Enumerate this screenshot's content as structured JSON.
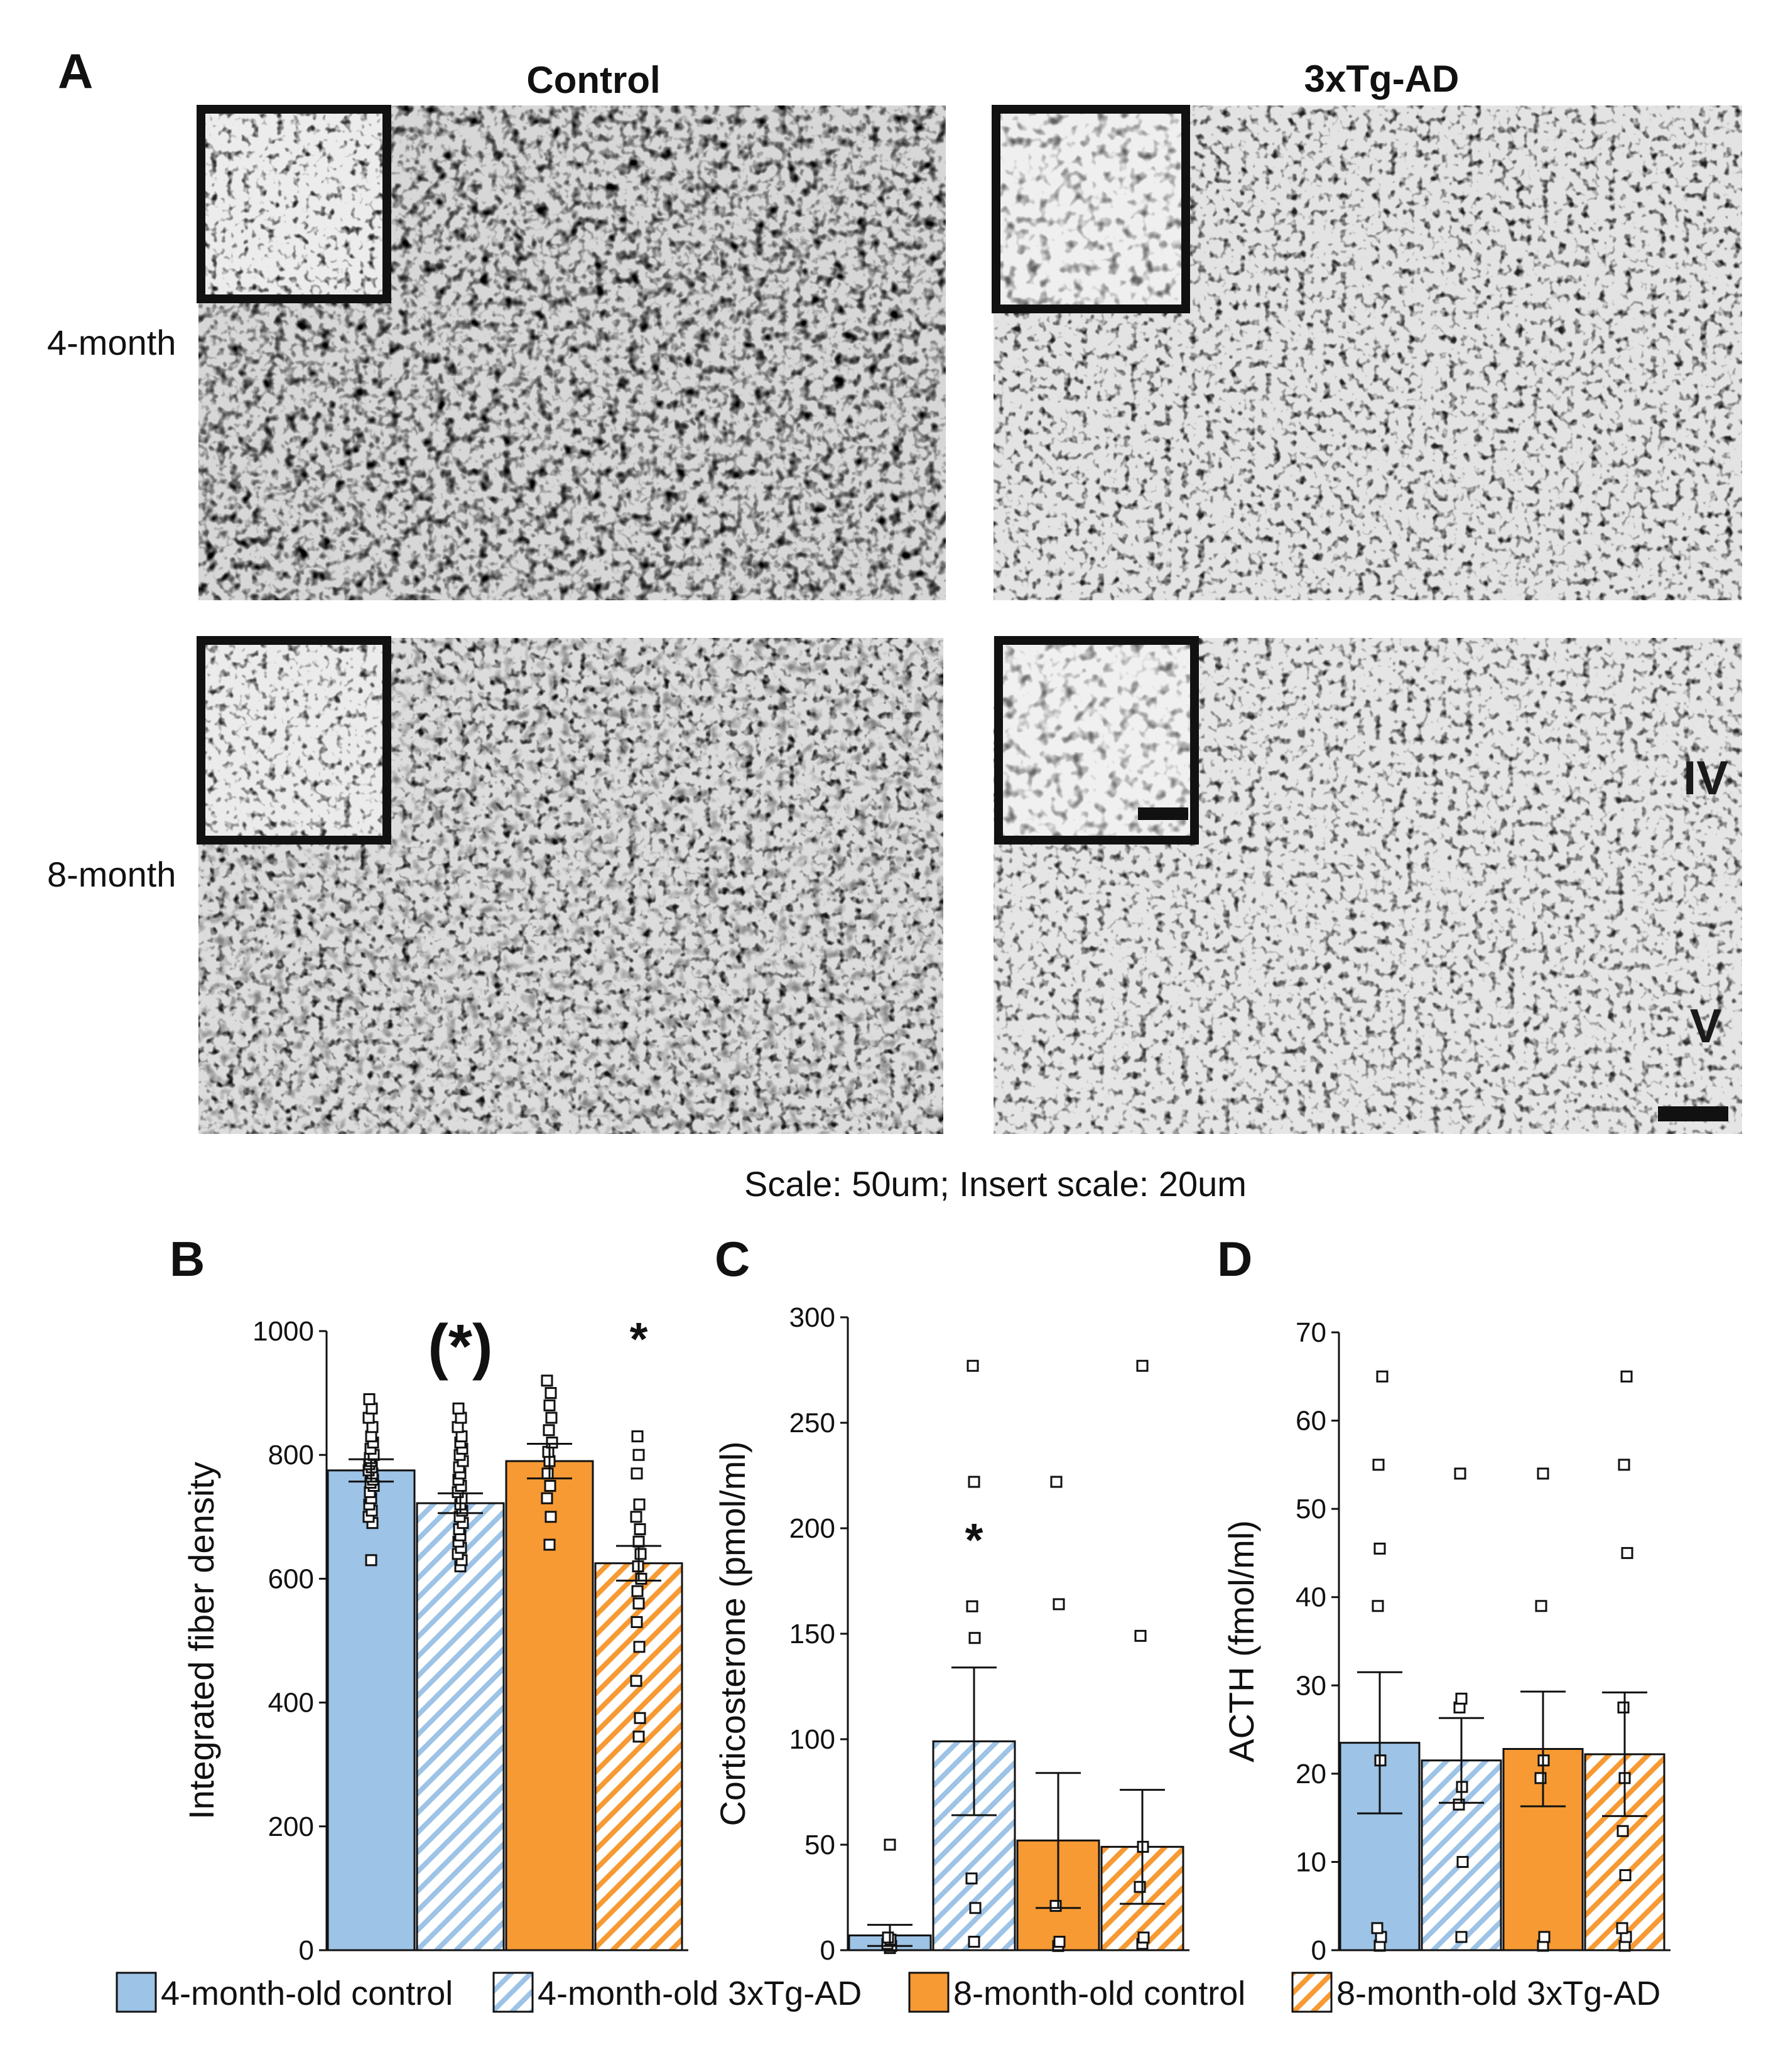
{
  "figure": {
    "panel_a": {
      "letter": "A",
      "col_titles": [
        "Control",
        "3xTg-AD"
      ],
      "row_labels": [
        "4-month",
        "8-month"
      ],
      "layer_labels": [
        "IV",
        "V"
      ],
      "caption": "Scale: 50um; Insert  scale: 20um"
    }
  },
  "legend": {
    "items": [
      {
        "label": "4-month-old control",
        "color": "#9dc3e6",
        "hatch": false
      },
      {
        "label": "4-month-old 3xTg-AD",
        "color": "#9dc3e6",
        "hatch": true
      },
      {
        "label": "8-month-old control",
        "color": "#f79a33",
        "hatch": false
      },
      {
        "label": "8-month-old 3xTg-AD",
        "color": "#f79a33",
        "hatch": true
      }
    ]
  },
  "colors": {
    "blue": "#9dc3e6",
    "orange": "#f79a33",
    "ink": "#111111"
  },
  "chart_data": [
    {
      "panel": "B",
      "type": "bar",
      "ylabel": "Integrated  fiber density",
      "ylim": [
        0,
        1000
      ],
      "yticks": [
        0,
        200,
        400,
        600,
        800,
        1000
      ],
      "groups": [
        "4-month-old control",
        "4-month-old 3xTg-AD",
        "8-month-old control",
        "8-month-old 3xTg-AD"
      ],
      "values": [
        775,
        722,
        790,
        625
      ],
      "errors": [
        18,
        16,
        28,
        28
      ],
      "significance": [
        "",
        "(*)",
        "",
        "*"
      ],
      "points": [
        [
          630,
          690,
          700,
          710,
          720,
          730,
          740,
          750,
          755,
          760,
          765,
          770,
          775,
          780,
          785,
          790,
          795,
          800,
          810,
          820,
          830,
          845,
          860,
          875,
          890
        ],
        [
          620,
          630,
          640,
          650,
          660,
          670,
          680,
          690,
          700,
          710,
          720,
          730,
          740,
          750,
          760,
          770,
          780,
          790,
          800,
          810,
          820,
          830,
          845,
          860,
          875
        ],
        [
          655,
          700,
          730,
          750,
          770,
          790,
          805,
          820,
          840,
          860,
          880,
          900,
          920
        ],
        [
          345,
          375,
          435,
          490,
          530,
          560,
          580,
          600,
          620,
          640,
          660,
          680,
          700,
          720,
          770,
          800,
          830
        ]
      ]
    },
    {
      "panel": "C",
      "type": "bar",
      "ylabel": "Corticosterone (pmol/ml)",
      "ylim": [
        0,
        300
      ],
      "yticks": [
        0,
        50,
        100,
        150,
        200,
        250,
        300
      ],
      "groups": [
        "4-month-old control",
        "4-month-old 3xTg-AD",
        "8-month-old control",
        "8-month-old 3xTg-AD"
      ],
      "values": [
        7,
        99,
        52,
        49
      ],
      "errors": [
        5,
        35,
        32,
        27
      ],
      "significance": [
        "",
        "*",
        "",
        ""
      ],
      "points": [
        [
          1,
          2,
          3,
          5,
          6,
          50
        ],
        [
          4,
          20,
          34,
          148,
          163,
          222,
          277
        ],
        [
          2,
          4,
          21,
          164,
          222
        ],
        [
          3,
          6,
          30,
          49,
          149,
          277
        ]
      ]
    },
    {
      "panel": "D",
      "type": "bar",
      "ylabel": "ACTH (fmol/ml)",
      "ylim": [
        0,
        70
      ],
      "yticks": [
        0,
        10,
        20,
        30,
        40,
        50,
        60,
        70
      ],
      "groups": [
        "4-month-old control",
        "4-month-old 3xTg-AD",
        "8-month-old control",
        "8-month-old 3xTg-AD"
      ],
      "values": [
        23.5,
        21.5,
        22.8,
        22.2
      ],
      "errors": [
        8,
        4.8,
        6.5,
        7
      ],
      "significance": [
        "",
        "",
        "",
        ""
      ],
      "points": [
        [
          0.5,
          1.5,
          2.5,
          21.5,
          39,
          45.5,
          55,
          65
        ],
        [
          1.5,
          10,
          16.5,
          18.5,
          27.5,
          28.5,
          54
        ],
        [
          0.5,
          1.5,
          19.5,
          21.5,
          39,
          54
        ],
        [
          0.5,
          1.5,
          2.5,
          8.5,
          13.5,
          19.5,
          27.5,
          45,
          55,
          65
        ]
      ]
    }
  ]
}
